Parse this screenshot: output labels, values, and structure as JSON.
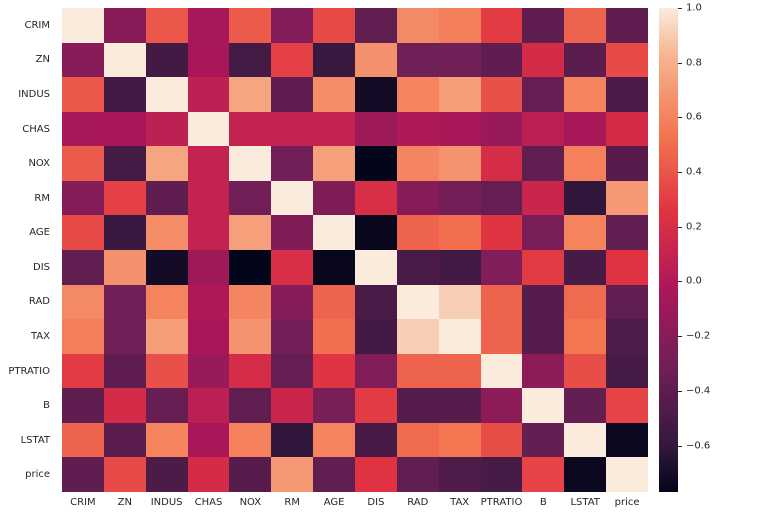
{
  "figure": {
    "background": "#ffffff",
    "text_color": "#262626"
  },
  "chart_data": {
    "type": "heatmap",
    "title": "",
    "xlabel": "",
    "ylabel": "",
    "categories": [
      "CRIM",
      "ZN",
      "INDUS",
      "CHAS",
      "NOX",
      "RM",
      "AGE",
      "DIS",
      "RAD",
      "TAX",
      "PTRATIO",
      "B",
      "LSTAT",
      "price"
    ],
    "matrix": [
      [
        1.0,
        -0.2,
        0.41,
        -0.06,
        0.42,
        -0.22,
        0.35,
        -0.38,
        0.63,
        0.58,
        0.29,
        -0.39,
        0.46,
        -0.39
      ],
      [
        -0.2,
        1.0,
        -0.53,
        -0.04,
        -0.52,
        0.31,
        -0.57,
        0.66,
        -0.31,
        -0.31,
        -0.39,
        0.18,
        -0.41,
        0.36
      ],
      [
        0.41,
        -0.53,
        1.0,
        0.06,
        0.76,
        -0.39,
        0.64,
        -0.71,
        0.6,
        0.72,
        0.38,
        -0.36,
        0.6,
        -0.48
      ],
      [
        -0.06,
        -0.04,
        0.06,
        1.0,
        0.09,
        0.09,
        0.09,
        -0.1,
        -0.01,
        -0.04,
        -0.12,
        0.05,
        -0.05,
        0.18
      ],
      [
        0.42,
        -0.52,
        0.76,
        0.09,
        1.0,
        -0.3,
        0.73,
        -0.77,
        0.61,
        0.67,
        0.19,
        -0.38,
        0.59,
        -0.43
      ],
      [
        -0.22,
        0.31,
        -0.39,
        0.09,
        -0.3,
        1.0,
        -0.24,
        0.21,
        -0.21,
        -0.29,
        -0.36,
        0.13,
        -0.61,
        0.7
      ],
      [
        0.35,
        -0.57,
        0.64,
        0.09,
        0.73,
        -0.24,
        1.0,
        -0.75,
        0.46,
        0.51,
        0.26,
        -0.27,
        0.6,
        -0.38
      ],
      [
        -0.38,
        0.66,
        -0.71,
        -0.1,
        -0.77,
        0.21,
        -0.75,
        1.0,
        -0.49,
        -0.53,
        -0.23,
        0.29,
        -0.5,
        0.25
      ],
      [
        0.63,
        -0.31,
        0.6,
        -0.01,
        0.61,
        -0.21,
        0.46,
        -0.49,
        1.0,
        0.91,
        0.46,
        -0.44,
        0.49,
        -0.38
      ],
      [
        0.58,
        -0.31,
        0.72,
        -0.04,
        0.67,
        -0.29,
        0.51,
        -0.53,
        0.91,
        1.0,
        0.46,
        -0.44,
        0.54,
        -0.47
      ],
      [
        0.29,
        -0.39,
        0.38,
        -0.12,
        0.19,
        -0.36,
        0.26,
        -0.23,
        0.46,
        0.46,
        1.0,
        -0.18,
        0.37,
        -0.51
      ],
      [
        -0.39,
        0.18,
        -0.36,
        0.05,
        -0.38,
        0.13,
        -0.27,
        0.29,
        -0.44,
        -0.44,
        -0.18,
        1.0,
        -0.37,
        0.33
      ],
      [
        0.46,
        -0.41,
        0.6,
        -0.05,
        0.59,
        -0.61,
        0.6,
        -0.5,
        0.49,
        0.54,
        0.37,
        -0.37,
        1.0,
        -0.74
      ],
      [
        -0.39,
        0.36,
        -0.48,
        0.18,
        -0.43,
        0.7,
        -0.38,
        0.25,
        -0.38,
        -0.47,
        -0.51,
        0.33,
        -0.74,
        1.0
      ]
    ],
    "vmin": -0.77,
    "vmax": 1.0,
    "grid": false,
    "legend_position": "right-colorbar",
    "colormap": "rocket",
    "colormap_stops": [
      [
        0.0,
        "#03051A"
      ],
      [
        0.1,
        "#35193E"
      ],
      [
        0.26,
        "#701F57"
      ],
      [
        0.42,
        "#AD1759"
      ],
      [
        0.58,
        "#E13342"
      ],
      [
        0.74,
        "#F37651"
      ],
      [
        0.9,
        "#F6B48F"
      ],
      [
        1.0,
        "#FAEBDD"
      ]
    ],
    "colorbar_ticks": [
      {
        "value": 1.0,
        "label": "1.0"
      },
      {
        "value": 0.8,
        "label": "0.8"
      },
      {
        "value": 0.6,
        "label": "0.6"
      },
      {
        "value": 0.4,
        "label": "0.4"
      },
      {
        "value": 0.2,
        "label": "0.2"
      },
      {
        "value": 0.0,
        "label": "0.0"
      },
      {
        "value": -0.2,
        "label": "−0.2"
      },
      {
        "value": -0.4,
        "label": "−0.4"
      },
      {
        "value": -0.6,
        "label": "−0.6"
      }
    ]
  }
}
